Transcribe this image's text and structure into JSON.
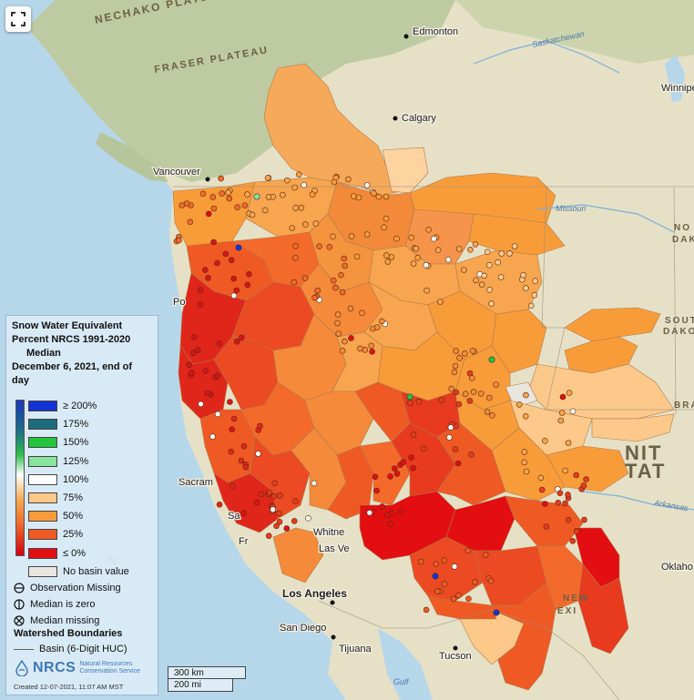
{
  "legend": {
    "title_line1": "Snow Water Equivalent",
    "title_line2": "Percent NRCS 1991-2020",
    "title_line3": "Median",
    "title_line4": "December 6, 2021, end of",
    "title_line5": "day",
    "classes": [
      {
        "label": "≥ 200%",
        "color": "#1433d6"
      },
      {
        "label": "175%",
        "color": "#1c6c7e"
      },
      {
        "label": "150%",
        "color": "#22c53c"
      },
      {
        "label": "125%",
        "color": "#8ae49c"
      },
      {
        "label": "100%",
        "color": "#ffffff"
      },
      {
        "label": "75%",
        "color": "#fdc98a"
      },
      {
        "label": "50%",
        "color": "#f89c3a"
      },
      {
        "label": "25%",
        "color": "#ef5a24"
      },
      {
        "label": "≤ 0%",
        "color": "#e20e12"
      },
      {
        "label": "No basin value",
        "color": "#e8e6df"
      }
    ],
    "symbols": [
      {
        "label": "Observation Missing",
        "icon": "circle-minus-icon"
      },
      {
        "label": "Median is zero",
        "icon": "circle-bar-icon"
      },
      {
        "label": "Median missing",
        "icon": "circle-x-icon"
      }
    ],
    "watershed_heading": "Watershed Boundaries",
    "watershed_item": "Basin (6-Digit HUC)",
    "agency_short": "NRCS",
    "agency_line1": "Natural Resources",
    "agency_line2": "Conservation Service",
    "created": "Created 12-07-2021, 11:07 AM MST"
  },
  "scale": {
    "km": "300 km",
    "mi": "200 mi"
  },
  "map": {
    "cities": [
      "Edmonton",
      "Calgary",
      "Vancouver",
      "Winnipeg",
      "Los Angeles",
      "San Diego",
      "Tijuana",
      "Tucson",
      "Oklaho",
      "Sacram",
      "Las Ve",
      "Whitne",
      "Fr",
      "Po",
      "Sa"
    ],
    "regions": [
      "NECHAKO PLATEAU",
      "FRASER PLATEAU"
    ],
    "rivers": [
      "Saskatchewan",
      "Missouri",
      "Arkansas"
    ],
    "country_partial": [
      "NIT",
      "TAT"
    ],
    "state_partial": [
      "NO",
      "DAK",
      "SOUT",
      "DAKO",
      "BRA",
      "NEW",
      "EXI"
    ],
    "ocean_partial": [
      "N",
      "Gulf"
    ]
  },
  "colors": {
    "ocean": "#b9d8ea",
    "land": "#e8e2c8",
    "forest": "#b9c79a"
  }
}
